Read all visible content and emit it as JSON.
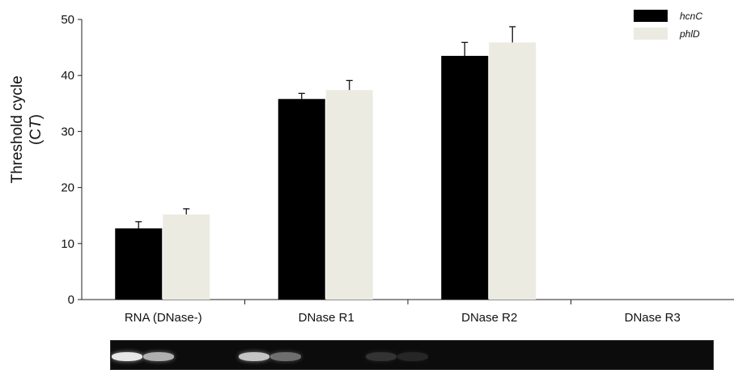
{
  "chart_data": {
    "type": "bar",
    "title": "",
    "xlabel": "",
    "ylabel_line1": "Threshold cycle",
    "ylabel_line2_prefix": "(C",
    "ylabel_line2_sub": "T",
    "ylabel_line2_suffix": ")",
    "ylim": [
      0,
      50
    ],
    "yticks": [
      0,
      10,
      20,
      30,
      40,
      50
    ],
    "categories": [
      "RNA (DNase-)",
      "DNase R1",
      "DNase R2",
      "DNase R3"
    ],
    "series": [
      {
        "name": "hcnC",
        "color": "#000000",
        "values": [
          12.7,
          35.8,
          43.5,
          null
        ],
        "errors": [
          1.2,
          1.0,
          2.4,
          null
        ]
      },
      {
        "name": "phlD",
        "color": "#ecebe2",
        "values": [
          15.2,
          37.4,
          45.9,
          null
        ],
        "errors": [
          1.0,
          1.7,
          2.8,
          null
        ]
      }
    ],
    "grid": false,
    "legend_position": "top-right"
  },
  "gel_image": {
    "description_name": "agarose-gel-image",
    "bands": [
      {
        "lane": 1,
        "intensity": 1.0
      },
      {
        "lane": 2,
        "intensity": 0.75
      },
      {
        "lane": 5,
        "intensity": 0.85
      },
      {
        "lane": 6,
        "intensity": 0.45
      },
      {
        "lane": 9,
        "intensity": 0.18
      },
      {
        "lane": 10,
        "intensity": 0.12
      }
    ]
  }
}
